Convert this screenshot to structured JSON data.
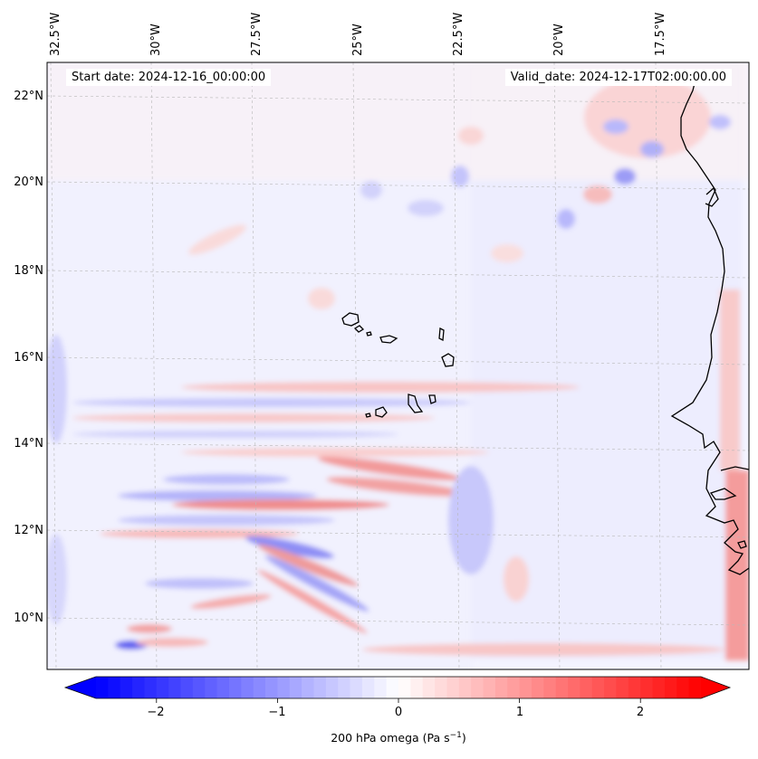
{
  "map": {
    "variable": "200 hPa omega",
    "start_date": "Start date: 2024-12-16_00:00:00",
    "valid_date": "Valid_date: 2024-12-17T02:00:00.00",
    "lon_labels": [
      "32.5°W",
      "30°W",
      "27.5°W",
      "25°W",
      "22.5°W",
      "20°W",
      "17.5°W"
    ],
    "lat_labels": [
      "22°N",
      "20°N",
      "18°N",
      "16°N",
      "14°N",
      "12°N",
      "10°N"
    ],
    "lon_range": [
      -33.2,
      -14.5
    ],
    "lat_range": [
      8.8,
      22.8
    ],
    "colors": {
      "negative": "#0000ff",
      "zero": "#ffffff",
      "positive": "#ff0000",
      "coast": "#000000",
      "grid": "#b8b8b8"
    }
  },
  "colorbar": {
    "ticks": [
      "−2",
      "−1",
      "0",
      "1",
      "2"
    ],
    "tick_values": [
      -2,
      -1,
      0,
      1,
      2
    ],
    "range": [
      -2.5,
      2.5
    ],
    "label_text": "200 hPa omega (Pa s",
    "label_exp": "−1",
    "label_close": ")"
  }
}
